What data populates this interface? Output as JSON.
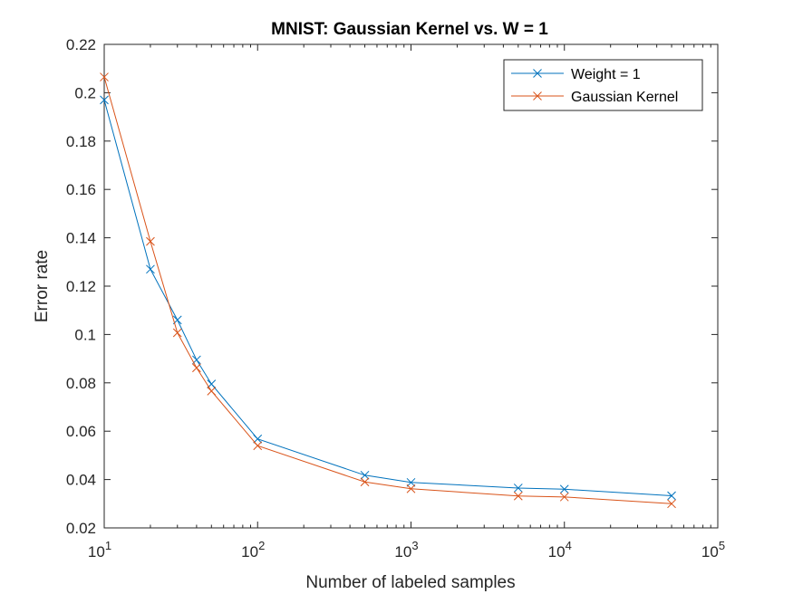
{
  "chart_data": {
    "type": "line",
    "title": "MNIST: Gaussian Kernel vs. W = 1",
    "xlabel": "Number of labeled samples",
    "ylabel": "Error rate",
    "x_scale": "log",
    "xlim": [
      10,
      100000
    ],
    "ylim": [
      0.02,
      0.22
    ],
    "x_ticks": [
      {
        "base": "10",
        "exp": "1"
      },
      {
        "base": "10",
        "exp": "2"
      },
      {
        "base": "10",
        "exp": "3"
      },
      {
        "base": "10",
        "exp": "4"
      },
      {
        "base": "10",
        "exp": "5"
      }
    ],
    "y_ticks": [
      "0.02",
      "0.04",
      "0.06",
      "0.08",
      "0.1",
      "0.12",
      "0.14",
      "0.16",
      "0.18",
      "0.2",
      "0.22"
    ],
    "grid": false,
    "legend_position": "top-right",
    "x": [
      10,
      20,
      30,
      40,
      50,
      100,
      500,
      1000,
      5000,
      10000,
      50000
    ],
    "series": [
      {
        "name": "Weight = 1",
        "color": "#0072BD",
        "marker": "x",
        "values": [
          0.197,
          0.127,
          0.106,
          0.0895,
          0.0795,
          0.0568,
          0.0418,
          0.0388,
          0.0365,
          0.036,
          0.0333
        ]
      },
      {
        "name": "Gaussian Kernel",
        "color": "#D95319",
        "marker": "x",
        "values": [
          0.2065,
          0.1385,
          0.1007,
          0.0862,
          0.0766,
          0.054,
          0.039,
          0.0362,
          0.0332,
          0.0328,
          0.03
        ]
      }
    ]
  }
}
